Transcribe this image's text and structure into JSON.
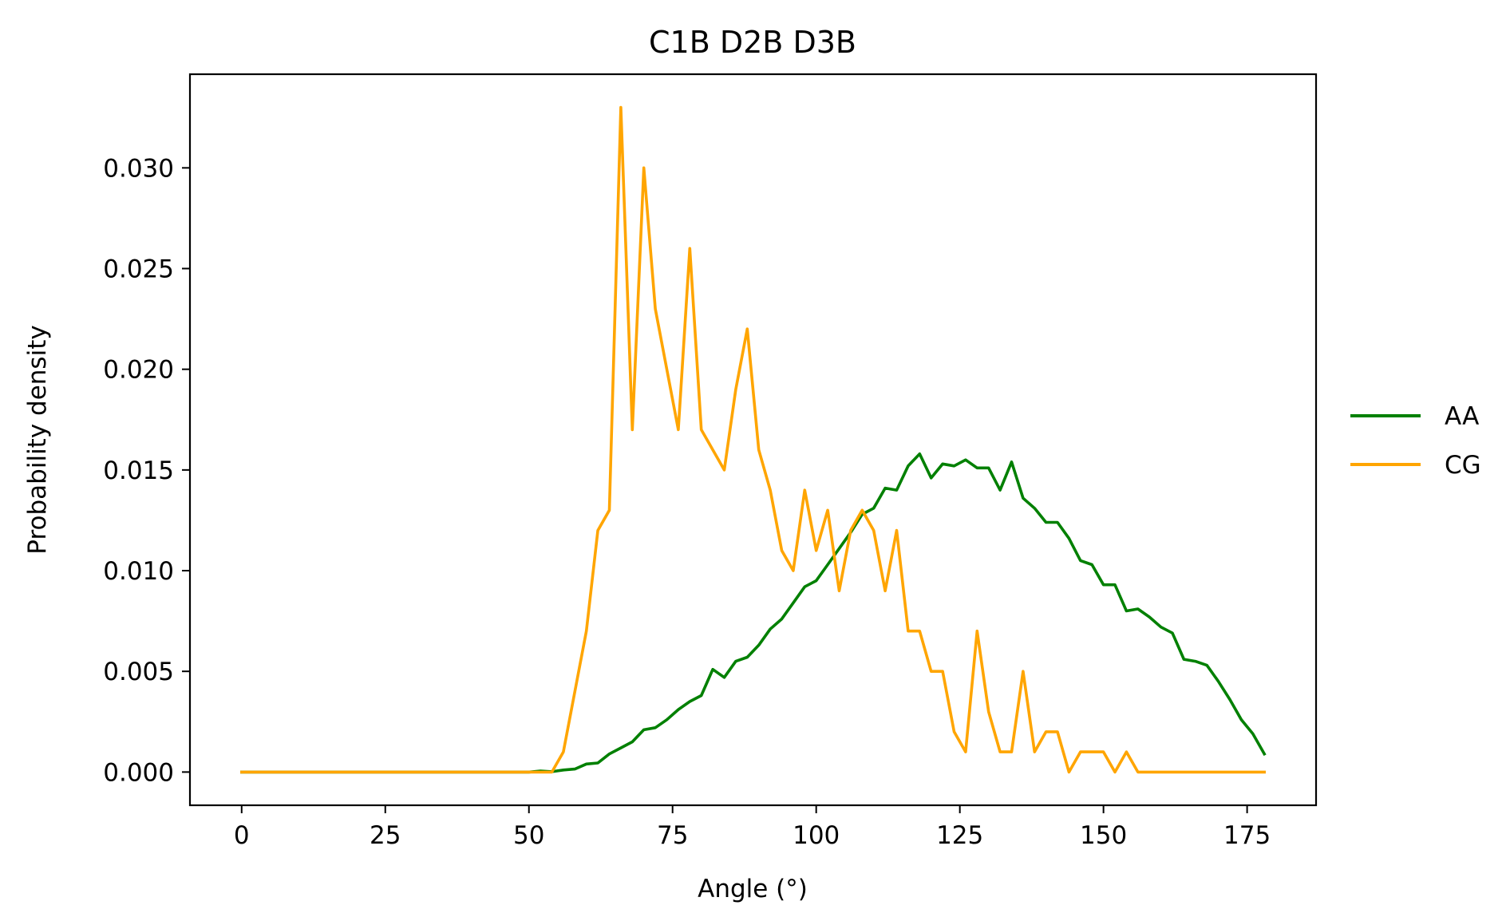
{
  "chart_data": {
    "type": "line",
    "title": "C1B D2B D3B",
    "xlabel": "Angle (°)",
    "ylabel": "Probability density",
    "xlim": [
      -9,
      187
    ],
    "ylim": [
      -0.00165,
      0.03465
    ],
    "xticks": [
      0,
      25,
      50,
      75,
      100,
      125,
      150,
      175
    ],
    "xtick_labels": [
      "0",
      "25",
      "50",
      "75",
      "100",
      "125",
      "150",
      "175"
    ],
    "yticks": [
      0.0,
      0.005,
      0.01,
      0.015,
      0.02,
      0.025,
      0.03
    ],
    "ytick_labels": [
      "0.000",
      "0.005",
      "0.010",
      "0.015",
      "0.020",
      "0.025",
      "0.030"
    ],
    "grid": false,
    "legend_position": "outside right, center",
    "x": [
      0,
      2,
      4,
      6,
      8,
      10,
      12,
      14,
      16,
      18,
      20,
      22,
      24,
      26,
      28,
      30,
      32,
      34,
      36,
      38,
      40,
      42,
      44,
      46,
      48,
      50,
      52,
      54,
      56,
      58,
      60,
      62,
      64,
      66,
      68,
      70,
      72,
      74,
      76,
      78,
      80,
      82,
      84,
      86,
      88,
      90,
      92,
      94,
      96,
      98,
      100,
      102,
      104,
      106,
      108,
      110,
      112,
      114,
      116,
      118,
      120,
      122,
      124,
      126,
      128,
      130,
      132,
      134,
      136,
      138,
      140,
      142,
      144,
      146,
      148,
      150,
      152,
      154,
      156,
      158,
      160,
      162,
      164,
      166,
      168,
      170,
      172,
      174,
      176,
      178
    ],
    "series": [
      {
        "name": "AA",
        "color": "#008000",
        "values": [
          0,
          0,
          0,
          0,
          0,
          0,
          0,
          0,
          0,
          0,
          0,
          0,
          0,
          0,
          0,
          0,
          0,
          0,
          0,
          0,
          0,
          0,
          0,
          0,
          0,
          0,
          5e-05,
          2e-05,
          0.0001,
          0.00015,
          0.0004,
          0.00045,
          0.0009,
          0.0012,
          0.0015,
          0.0021,
          0.0022,
          0.0026,
          0.0031,
          0.0035,
          0.0038,
          0.0051,
          0.0047,
          0.0055,
          0.0057,
          0.0063,
          0.0071,
          0.0076,
          0.0084,
          0.0092,
          0.0095,
          0.0103,
          0.0111,
          0.0119,
          0.0128,
          0.0131,
          0.0141,
          0.014,
          0.0152,
          0.0158,
          0.0146,
          0.0153,
          0.0152,
          0.0155,
          0.0151,
          0.0151,
          0.014,
          0.0154,
          0.0136,
          0.0131,
          0.0124,
          0.0124,
          0.0116,
          0.0105,
          0.0103,
          0.0093,
          0.0093,
          0.008,
          0.0081,
          0.0077,
          0.0072,
          0.0069,
          0.0056,
          0.0055,
          0.0053,
          0.0045,
          0.0036,
          0.0026,
          0.0019,
          0.0009
        ]
      },
      {
        "name": "CG",
        "color": "#FFA500",
        "values": [
          0,
          0,
          0,
          0,
          0,
          0,
          0,
          0,
          0,
          0,
          0,
          0,
          0,
          0,
          0,
          0,
          0,
          0,
          0,
          0,
          0,
          0,
          0,
          0,
          0,
          0,
          0,
          0,
          0.001,
          0.004,
          0.007,
          0.012,
          0.013,
          0.033,
          0.017,
          0.03,
          0.023,
          0.02,
          0.017,
          0.026,
          0.017,
          0.016,
          0.015,
          0.019,
          0.022,
          0.016,
          0.014,
          0.011,
          0.01,
          0.014,
          0.011,
          0.013,
          0.009,
          0.012,
          0.013,
          0.012,
          0.009,
          0.012,
          0.007,
          0.007,
          0.005,
          0.005,
          0.002,
          0.001,
          0.007,
          0.003,
          0.001,
          0.001,
          0.005,
          0.001,
          0.002,
          0.002,
          0,
          0.001,
          0.001,
          0.001,
          0,
          0.001,
          0,
          0,
          0,
          0,
          0,
          0,
          0,
          0,
          0,
          0,
          0,
          0
        ]
      }
    ]
  }
}
